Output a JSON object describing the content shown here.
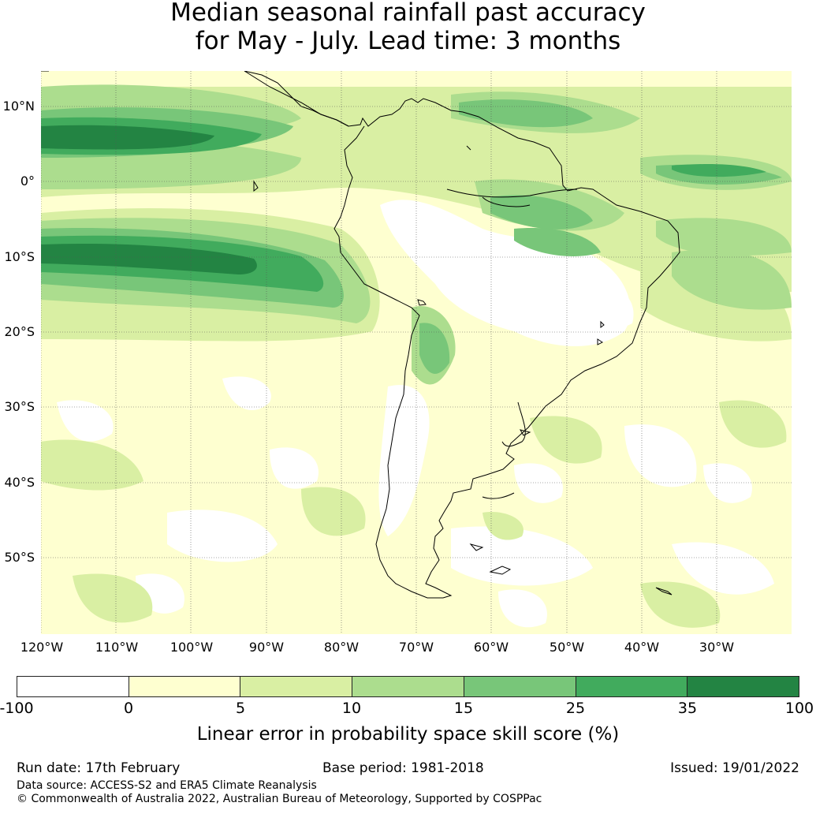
{
  "title": {
    "line1": "Median seasonal rainfall past accuracy",
    "line2": "for May - July. Lead time: 3 months"
  },
  "map": {
    "latitude_labels": [
      "10°N",
      "0°",
      "10°S",
      "20°S",
      "30°S",
      "40°S",
      "50°S"
    ],
    "longitude_labels": [
      "120°W",
      "110°W",
      "100°W",
      "90°W",
      "80°W",
      "70°W",
      "60°W",
      "50°W",
      "40°W",
      "30°W"
    ],
    "fill_colors": {
      "lt0": "#ffffff",
      "0to5": "#feffd0",
      "5to10": "#d9efa3",
      "10to15": "#acdd8e",
      "15to25": "#78c679",
      "25to35": "#41ab5d",
      "35to100": "#238443"
    },
    "coastline_color": "#000000",
    "gridline_color": "#555555"
  },
  "legend": {
    "colors": [
      "#ffffff",
      "#feffd0",
      "#d9efa3",
      "#acdd8e",
      "#78c679",
      "#41ab5d",
      "#238443"
    ],
    "ticks": [
      "-100",
      "0",
      "5",
      "10",
      "15",
      "25",
      "35",
      "100"
    ],
    "label": "Linear error in probability space skill score (%)"
  },
  "footer": {
    "run_date": "Run date: 17th February",
    "base_period": "Base period: 1981-2018",
    "issued": "Issued: 19/01/2022",
    "data_source": "Data source: ACCESS-S2 and ERA5 Climate Reanalysis",
    "copyright": "© Commonwealth of Australia 2022, Australian Bureau of Meteorology, Supported by COSPPac"
  }
}
